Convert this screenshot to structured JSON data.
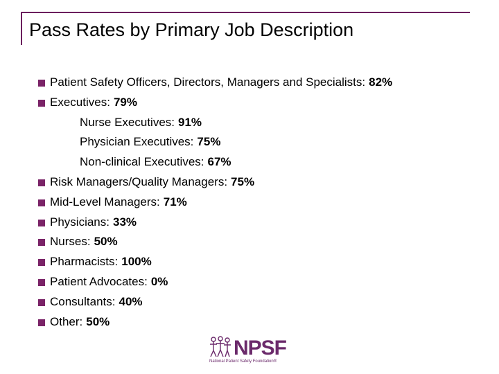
{
  "header": {
    "title": "Pass Rates by Primary Job Description"
  },
  "items": [
    {
      "label": "Patient Safety Officers, Directors, Managers and Specialists:",
      "value": "82%"
    },
    {
      "label": "Executives:",
      "value": "79%",
      "subitems": [
        {
          "label": "Nurse Executives:",
          "value": "91%"
        },
        {
          "label": "Physician Executives:",
          "value": "75%"
        },
        {
          "label": "Non-clinical Executives:",
          "value": "67%"
        }
      ]
    },
    {
      "label": "Risk Managers/Quality Managers:",
      "value": "75%"
    },
    {
      "label": "Mid-Level Managers:",
      "value": "71%"
    },
    {
      "label": "Physicians:",
      "value": "33%"
    },
    {
      "label": "Nurses:",
      "value": "50%"
    },
    {
      "label": "Pharmacists:",
      "value": "100%"
    },
    {
      "label": "Patient Advocates:",
      "value": "0%"
    },
    {
      "label": "Consultants:",
      "value": "40%"
    },
    {
      "label": "Other:",
      "value": "50%"
    }
  ],
  "logo": {
    "name": "NPSF",
    "tagline": "National Patient Safety Foundation®"
  }
}
